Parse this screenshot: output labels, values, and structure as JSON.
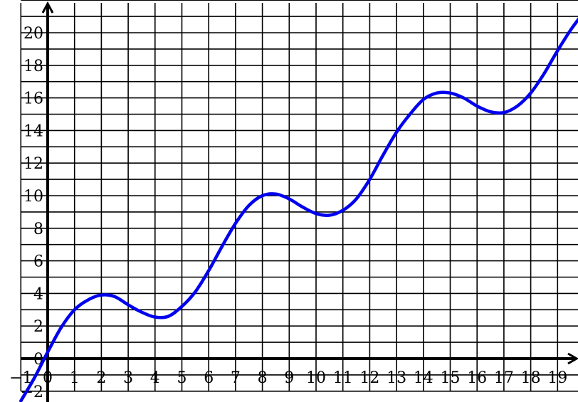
{
  "chart_data": {
    "type": "line",
    "title": "",
    "xlabel": "",
    "ylabel": "",
    "xlim": [
      -1,
      20
    ],
    "ylim": [
      -2,
      22
    ],
    "grid": true,
    "x_ticks": [
      -1,
      0,
      1,
      2,
      3,
      4,
      5,
      6,
      7,
      8,
      9,
      10,
      11,
      12,
      13,
      14,
      15,
      16,
      17,
      18,
      19
    ],
    "y_ticks": [
      -2,
      0,
      2,
      4,
      6,
      8,
      10,
      12,
      14,
      16,
      18,
      20
    ],
    "x_tick_labels": [
      "−1",
      "0",
      "1",
      "2",
      "3",
      "4",
      "5",
      "6",
      "7",
      "8",
      "9",
      "10",
      "11",
      "12",
      "13",
      "14",
      "15",
      "16",
      "17",
      "18",
      "19"
    ],
    "y_tick_labels": [
      "−2",
      "0",
      "2",
      "4",
      "6",
      "8",
      "10",
      "12",
      "14",
      "16",
      "18",
      "20"
    ],
    "series": [
      {
        "color": "#0000ee",
        "x": [
          -1,
          -0.5,
          0,
          0.5,
          1,
          1.5,
          2,
          2.5,
          3,
          3.5,
          4,
          4.5,
          5,
          5.5,
          6,
          6.5,
          7,
          7.5,
          8,
          8.5,
          9,
          9.5,
          10,
          10.5,
          11,
          11.5,
          12,
          12.5,
          13,
          13.5,
          14,
          14.5,
          15,
          15.5,
          16,
          16.5,
          17,
          17.5,
          18,
          18.5,
          19,
          19.5,
          20
        ],
        "y": [
          -2.6,
          -1.2,
          0.4,
          1.9,
          3.0,
          3.6,
          3.9,
          3.8,
          3.3,
          2.85,
          2.55,
          2.6,
          3.2,
          4.1,
          5.4,
          6.9,
          8.3,
          9.4,
          10.0,
          10.1,
          9.8,
          9.3,
          8.9,
          8.8,
          9.1,
          9.8,
          11.0,
          12.5,
          13.9,
          15.0,
          15.9,
          16.3,
          16.3,
          16.0,
          15.5,
          15.15,
          15.1,
          15.5,
          16.3,
          17.5,
          18.9,
          20.2,
          21.3
        ]
      }
    ]
  }
}
